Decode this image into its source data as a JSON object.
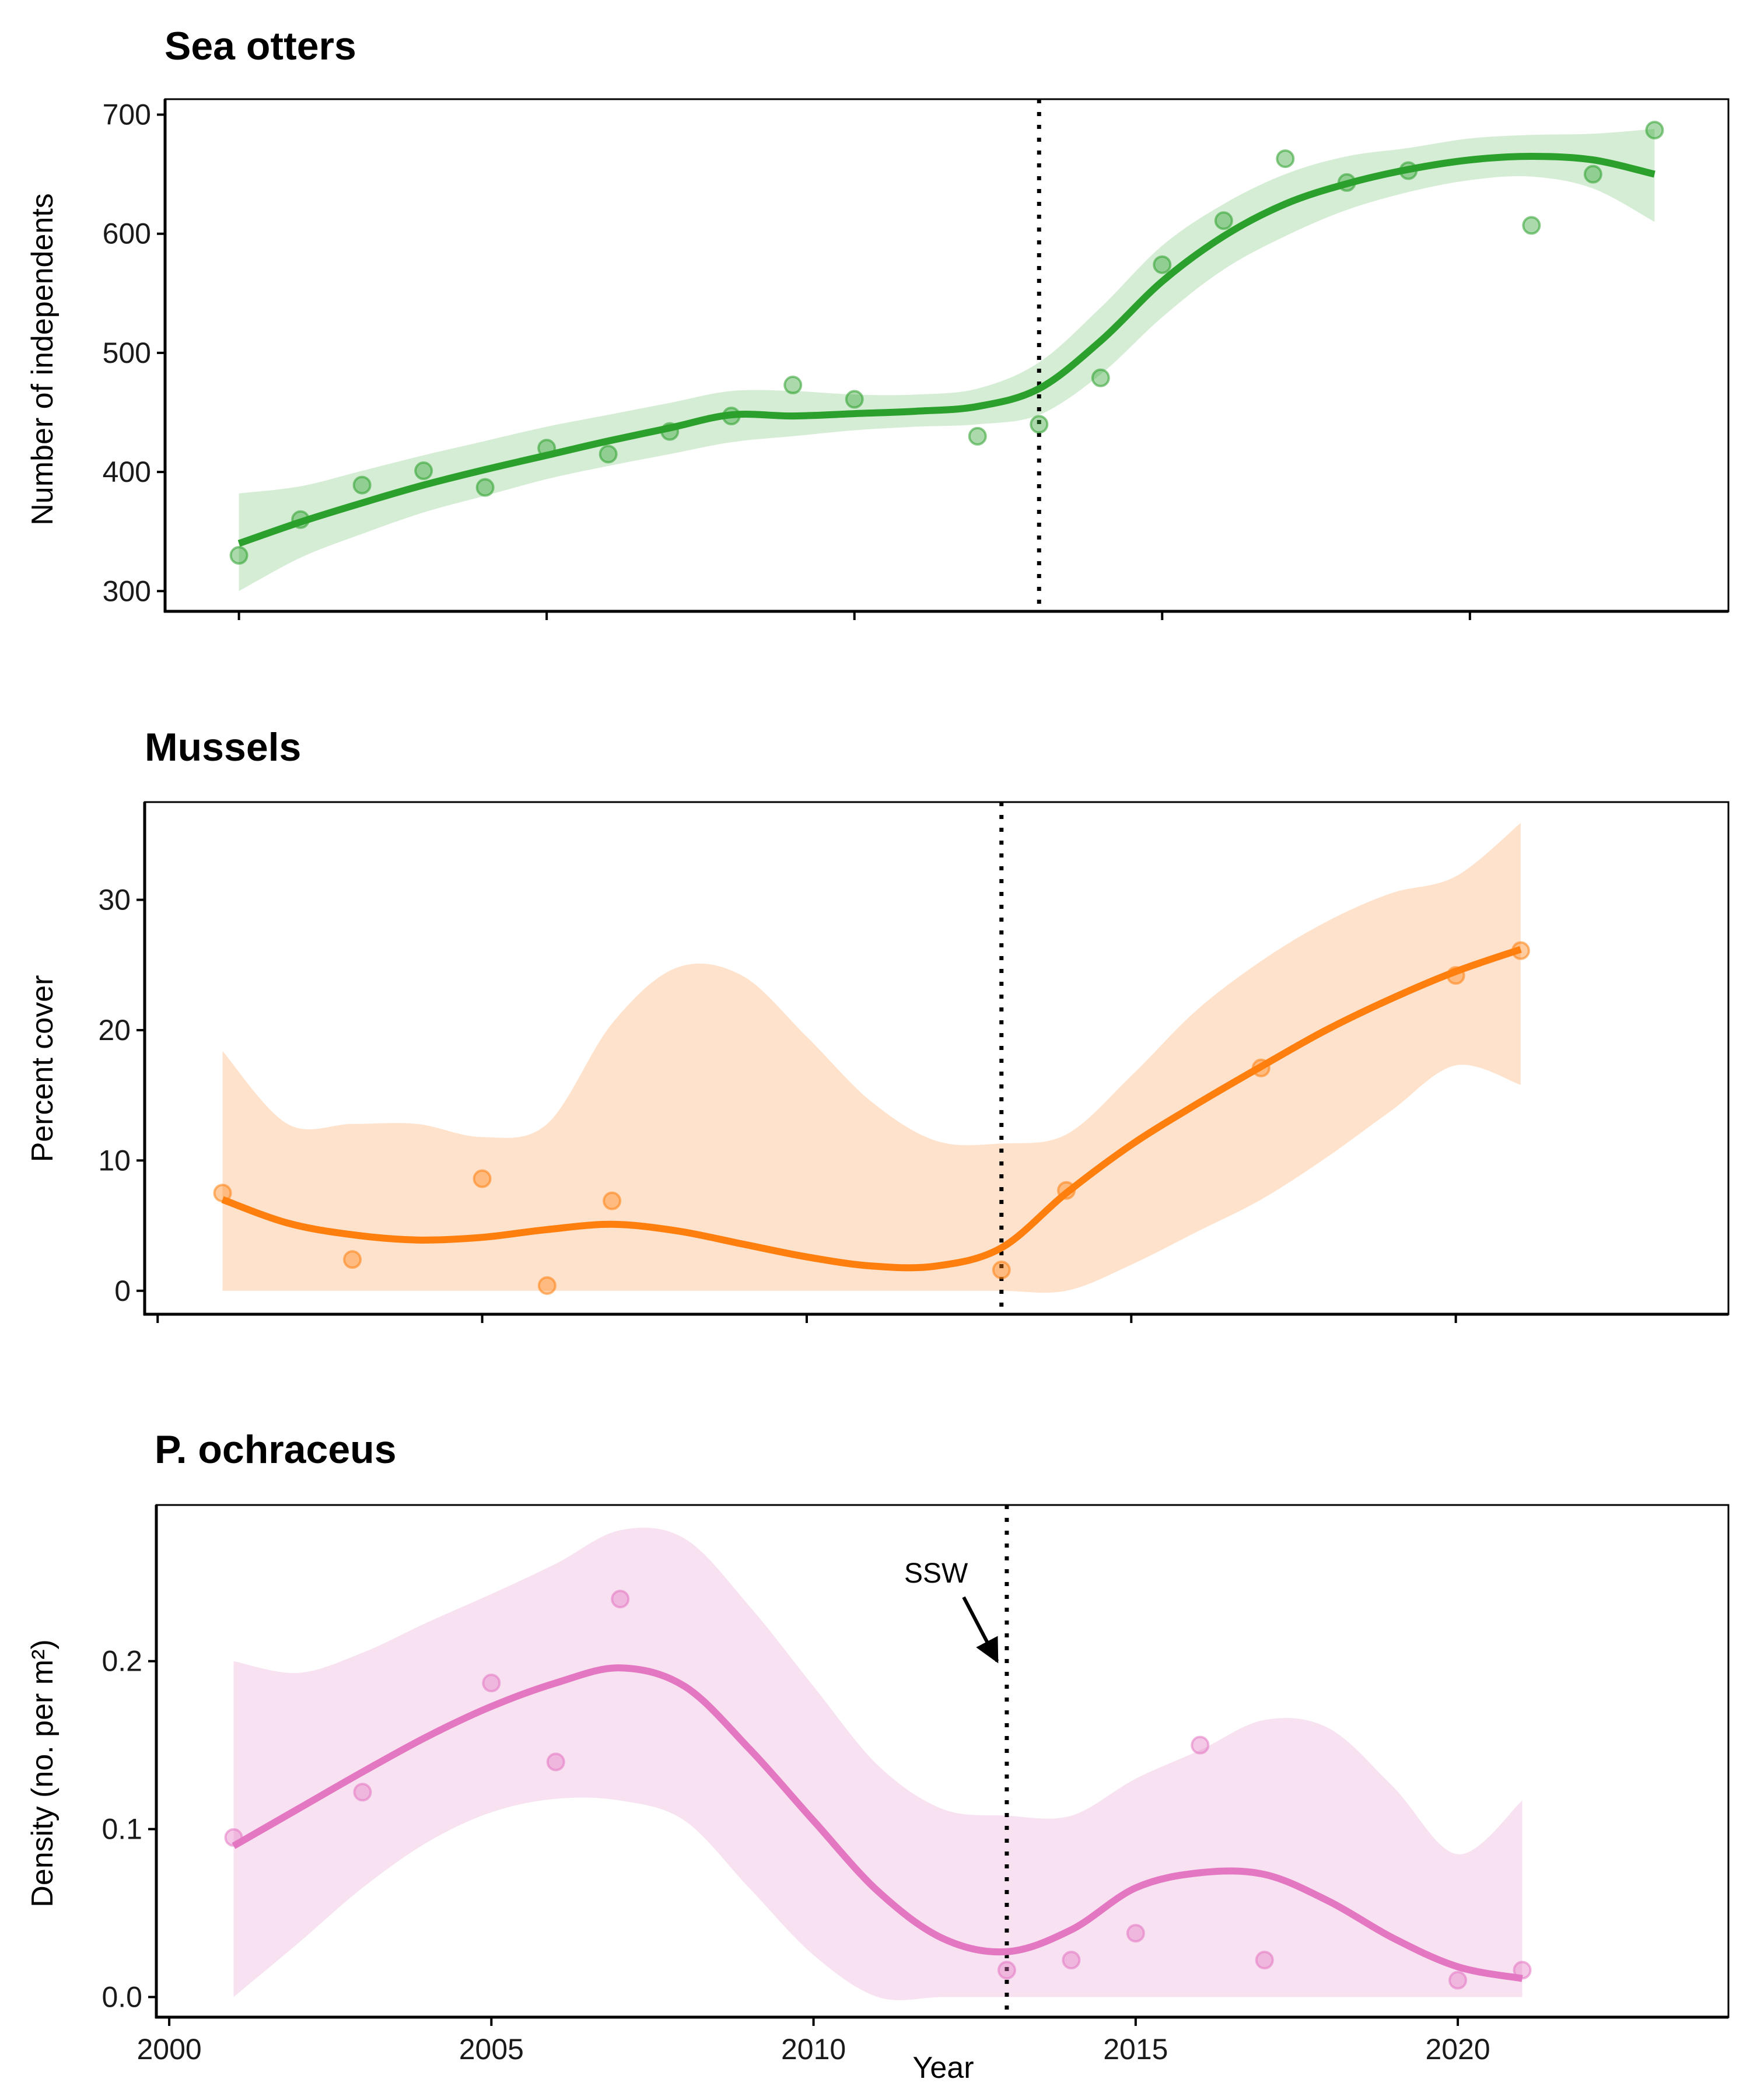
{
  "chart_data": [
    {
      "type": "line",
      "title": "Sea otters",
      "xlabel": "",
      "ylabel": "Number of independents",
      "xlim": [
        1998.8,
        2024.2
      ],
      "ylim": [
        283,
        713
      ],
      "xticks": [
        2000,
        2005,
        2010,
        2015,
        2020
      ],
      "yticks": [
        300,
        400,
        500,
        600,
        700
      ],
      "x_tick_labels_visible": false,
      "event_line_x": 2013,
      "colors": {
        "line": "#2ca02c",
        "band": "#d4edd4",
        "points": "#2ca02c"
      },
      "points": {
        "x": [
          2000,
          2001,
          2002,
          2003,
          2004,
          2005,
          2006,
          2007,
          2008,
          2009,
          2010,
          2012,
          2013,
          2014,
          2015,
          2016,
          2017,
          2018,
          2019,
          2021,
          2022,
          2023
        ],
        "y": [
          330,
          360,
          389,
          401,
          387,
          420,
          415,
          434,
          447,
          473,
          461,
          430,
          440,
          479,
          574,
          611,
          663,
          643,
          653,
          607,
          650,
          687
        ]
      },
      "fit": {
        "x": [
          2000,
          2001,
          2002,
          2003,
          2004,
          2005,
          2006,
          2007,
          2008,
          2009,
          2010,
          2011,
          2012,
          2013,
          2014,
          2015,
          2016,
          2017,
          2018,
          2019,
          2020,
          2021,
          2022,
          2023
        ],
        "y": [
          340,
          358,
          374,
          389,
          402,
          414,
          426,
          437,
          448,
          447,
          449,
          451,
          455,
          470,
          510,
          560,
          598,
          625,
          642,
          654,
          662,
          665,
          662,
          650
        ],
        "lower": [
          300,
          328,
          348,
          366,
          380,
          394,
          405,
          415,
          425,
          430,
          435,
          438,
          440,
          448,
          482,
          530,
          570,
          598,
          620,
          635,
          645,
          648,
          638,
          610
        ],
        "upper": [
          382,
          388,
          401,
          414,
          426,
          438,
          448,
          458,
          468,
          468,
          465,
          465,
          470,
          492,
          538,
          590,
          625,
          650,
          665,
          672,
          680,
          683,
          684,
          688
        ]
      }
    },
    {
      "type": "line",
      "title": "Mussels",
      "xlabel": "",
      "ylabel": "Percent cover",
      "xlim": [
        1999.8,
        2024.2
      ],
      "ylim": [
        -1.8,
        37.5
      ],
      "xticks": [
        2000,
        2005,
        2010,
        2015,
        2020
      ],
      "yticks": [
        0,
        10,
        20,
        30
      ],
      "x_tick_labels_visible": false,
      "event_line_x": 2013,
      "colors": {
        "line": "#ff7f0e",
        "band": "#ffe2cc",
        "points": "#ff7f0e"
      },
      "points": {
        "x": [
          2001,
          2003,
          2005,
          2006,
          2007,
          2013,
          2014,
          2017,
          2020,
          2021
        ],
        "y": [
          7.5,
          2.4,
          8.6,
          0.4,
          6.9,
          1.6,
          7.7,
          17.1,
          24.2,
          26.1
        ]
      },
      "fit": {
        "x": [
          2001,
          2002,
          2003,
          2004,
          2005,
          2006,
          2007,
          2008,
          2009,
          2010,
          2011,
          2012,
          2013,
          2014,
          2015,
          2016,
          2017,
          2018,
          2019,
          2020,
          2021
        ],
        "y": [
          7,
          5.2,
          4.3,
          3.9,
          4.1,
          4.7,
          5.1,
          4.6,
          3.6,
          2.6,
          1.9,
          1.9,
          3.3,
          7.5,
          11.2,
          14.3,
          17.2,
          20,
          22.4,
          24.5,
          26.2
        ],
        "lower": [
          0,
          0,
          0,
          0,
          0,
          0,
          0,
          0,
          0,
          0,
          0,
          0,
          0,
          0,
          2,
          4.5,
          7,
          10.2,
          13.8,
          17.3,
          15.8
        ],
        "upper": [
          18.4,
          12.8,
          12.8,
          12.8,
          11.8,
          12.8,
          20.5,
          24.8,
          24.2,
          19.5,
          14.5,
          11.5,
          11.3,
          12,
          16.5,
          21.5,
          25.3,
          28.3,
          30.5,
          31.8,
          35.9
        ]
      }
    },
    {
      "type": "line",
      "title": "P. ochraceus",
      "xlabel": "Year",
      "ylabel": "Density (no. per m²)",
      "xlim": [
        1999.8,
        2024.2
      ],
      "ylim": [
        -0.012,
        0.293
      ],
      "xticks": [
        2000,
        2005,
        2010,
        2015,
        2020
      ],
      "x_tick_labels": [
        "2000",
        "2005",
        "2010",
        "2015",
        "2020"
      ],
      "yticks": [
        0.0,
        0.1,
        0.2
      ],
      "y_tick_labels": [
        "0.0",
        "0.1",
        "0.2"
      ],
      "x_tick_labels_visible": true,
      "event_line_x": 2013,
      "annotation": {
        "text": "SSW",
        "arrow_to": [
          2012.85,
          0.2
        ]
      },
      "colors": {
        "line": "#e377c2",
        "band": "#f8e1f1",
        "points": "#e377c2"
      },
      "points": {
        "x": [
          2001,
          2003,
          2005,
          2006,
          2007,
          2013,
          2014,
          2015,
          2016,
          2017,
          2020,
          2021
        ],
        "y": [
          0.095,
          0.122,
          0.187,
          0.14,
          0.237,
          0.016,
          0.022,
          0.038,
          0.15,
          0.022,
          0.01,
          0.016
        ]
      },
      "fit": {
        "x": [
          2001,
          2002,
          2003,
          2004,
          2005,
          2006,
          2007,
          2008,
          2009,
          2010,
          2011,
          2012,
          2013,
          2014,
          2015,
          2016,
          2017,
          2018,
          2019,
          2020,
          2021
        ],
        "y": [
          0.09,
          0.112,
          0.134,
          0.155,
          0.173,
          0.187,
          0.196,
          0.185,
          0.148,
          0.105,
          0.063,
          0.035,
          0.027,
          0.04,
          0.065,
          0.074,
          0.073,
          0.057,
          0.035,
          0.018,
          0.011
        ],
        "lower": [
          0,
          0.032,
          0.065,
          0.092,
          0.11,
          0.118,
          0.117,
          0.105,
          0.065,
          0.025,
          0,
          0,
          0,
          0,
          0,
          0,
          0,
          0,
          0,
          0,
          0
        ],
        "upper": [
          0.2,
          0.193,
          0.205,
          0.223,
          0.24,
          0.258,
          0.278,
          0.273,
          0.233,
          0.185,
          0.138,
          0.112,
          0.108,
          0.108,
          0.13,
          0.147,
          0.165,
          0.16,
          0.125,
          0.085,
          0.117
        ]
      }
    }
  ]
}
